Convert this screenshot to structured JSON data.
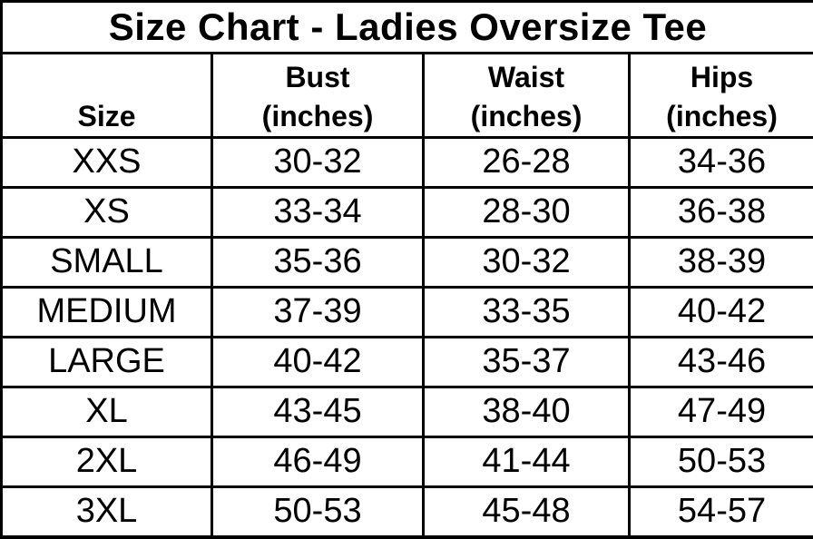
{
  "page": {
    "title": "Size Chart - Ladies Oversize Tee"
  },
  "table": {
    "header": {
      "size_label": "Size",
      "columns": [
        {
          "line1": "Bust",
          "line2": "(inches)"
        },
        {
          "line1": "Waist",
          "line2": "(inches)"
        },
        {
          "line1": "Hips",
          "line2": "(inches)"
        }
      ]
    }
  },
  "chart_data": {
    "type": "table",
    "title": "Size Chart - Ladies Oversize Tee",
    "columns": [
      "Size",
      "Bust (inches)",
      "Waist (inches)",
      "Hips (inches)"
    ],
    "rows": [
      [
        "XXS",
        "30-32",
        "26-28",
        "34-36"
      ],
      [
        "XS",
        "33-34",
        "28-30",
        "36-38"
      ],
      [
        "SMALL",
        "35-36",
        "30-32",
        "38-39"
      ],
      [
        "MEDIUM",
        "37-39",
        "33-35",
        "40-42"
      ],
      [
        "LARGE",
        "40-42",
        "35-37",
        "43-46"
      ],
      [
        "XL",
        "43-45",
        "38-40",
        "47-49"
      ],
      [
        "2XL",
        "46-49",
        "41-44",
        "50-53"
      ],
      [
        "3XL",
        "50-53",
        "45-48",
        "54-57"
      ]
    ]
  },
  "colors": {
    "background": "#ffffff",
    "border": "#000000",
    "text": "#000000"
  }
}
